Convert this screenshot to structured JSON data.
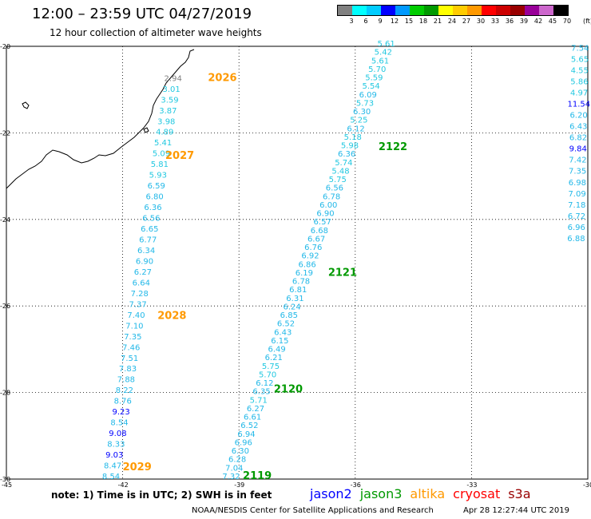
{
  "header": {
    "title": "12:00 – 23:59 UTC 04/27/2019",
    "subtitle": "12 hour collection of altimeter wave heights"
  },
  "legend": {
    "colors": [
      "#808080",
      "#00ffff",
      "#00ccff",
      "#0000ff",
      "#0099ff",
      "#00cc00",
      "#009900",
      "#ffff00",
      "#ffcc00",
      "#ff9900",
      "#ff0000",
      "#cc0000",
      "#990000",
      "#990099",
      "#cc66cc",
      "#000000"
    ],
    "labels": [
      "3",
      "6",
      "9",
      "12",
      "15",
      "18",
      "21",
      "24",
      "27",
      "30",
      "33",
      "36",
      "39",
      "42",
      "45",
      "70",
      "(ft)"
    ]
  },
  "chart_data": {
    "type": "map-scatter",
    "xlim": [
      -45,
      -30
    ],
    "ylim": [
      -30,
      -20
    ],
    "x_ticks": [
      -45,
      -42,
      -39,
      -36,
      -33,
      -30
    ],
    "y_ticks": [
      -20,
      -22,
      -24,
      -26,
      -28,
      -30
    ],
    "passes": [
      {
        "label": "2026",
        "satellite": "altika",
        "label_lon": -39.8,
        "label_lat": -20.8
      },
      {
        "label": "2027",
        "satellite": "altika",
        "label_lon": -40.9,
        "label_lat": -22.6
      },
      {
        "label": "2028",
        "satellite": "altika",
        "label_lon": -41.1,
        "label_lat": -26.3
      },
      {
        "label": "2029",
        "satellite": "altika",
        "label_lon": -42.0,
        "label_lat": -29.8
      },
      {
        "label": "2119",
        "satellite": "jason3",
        "label_lon": -38.9,
        "label_lat": -30.0
      },
      {
        "label": "2120",
        "satellite": "jason3",
        "label_lon": -38.1,
        "label_lat": -28.0
      },
      {
        "label": "2121",
        "satellite": "jason3",
        "label_lon": -36.7,
        "label_lat": -25.3
      },
      {
        "label": "2122",
        "satellite": "jason3",
        "label_lon": -35.4,
        "label_lat": -22.4
      }
    ],
    "tracks": [
      {
        "name": "west",
        "lon_start": -40.7,
        "lat_start": -20.8,
        "lon_end": -42.3,
        "lat_end": -30.0,
        "values": [
          "2.94",
          "3.01",
          "3.59",
          "3.87",
          "3.98",
          "4.89",
          "5.41",
          "5.09",
          "5.81",
          "5.93",
          "6.59",
          "6.80",
          "6.36",
          "6.56",
          "6.65",
          "6.77",
          "6.34",
          "6.90",
          "6.27",
          "6.64",
          "7.28",
          "7.37",
          "7.40",
          "7.10",
          "7.35",
          "7.46",
          "7.51",
          "7.83",
          "7.88",
          "8.22",
          "8.76",
          "9.23",
          "8.54",
          "9.08",
          "8.33",
          "9.03",
          "8.47",
          "8.54"
        ]
      },
      {
        "name": "middle",
        "lon_start": -35.2,
        "lat_start": -20.0,
        "lon_end": -39.2,
        "lat_end": -30.0,
        "values": [
          "5.61",
          "5.42",
          "5.61",
          "5.70",
          "5.59",
          "5.54",
          "6.09",
          "5.73",
          "6.30",
          "5.25",
          "6.12",
          "5.18",
          "5.98",
          "6.36",
          "5.74",
          "5.48",
          "5.75",
          "6.56",
          "6.78",
          "6.00",
          "6.90",
          "6.57",
          "6.68",
          "6.67",
          "6.76",
          "6.92",
          "6.86",
          "6.19",
          "6.78",
          "6.81",
          "6.31",
          "6.24",
          "6.85",
          "6.52",
          "6.43",
          "6.15",
          "6.49",
          "6.21",
          "5.75",
          "5.70",
          "6.12",
          "6.35",
          "5.71",
          "6.27",
          "6.61",
          "6.52",
          "6.94",
          "6.96",
          "6.30",
          "6.28",
          "7.04",
          "7.32"
        ]
      },
      {
        "name": "east",
        "lon_start": -30.2,
        "lat_start": -20.1,
        "lon_end": -30.3,
        "lat_end": -24.5,
        "values": [
          "7.54",
          "5.65",
          "4.55",
          "5.86",
          "4.97",
          "11.54",
          "6.20",
          "6.43",
          "6.82",
          "9.84",
          "7.42",
          "7.35",
          "6.98",
          "7.09",
          "7.18",
          "6.72",
          "6.96",
          "6.88"
        ]
      }
    ]
  },
  "footer": {
    "note": "note:  1) Time is in UTC;  2) SWH is in feet",
    "satellites": [
      {
        "name": "jason2",
        "color": "#0000ff"
      },
      {
        "name": "jason3",
        "color": "#009900"
      },
      {
        "name": "altika",
        "color": "#ff9900"
      },
      {
        "name": "cryosat",
        "color": "#ff0000"
      },
      {
        "name": "s3a",
        "color": "#990000"
      }
    ],
    "credit": "NOAA/NESDIS Center for Satellite Applications and Research",
    "timestamp": "Apr 28 12:27:44 UTC 2019"
  }
}
